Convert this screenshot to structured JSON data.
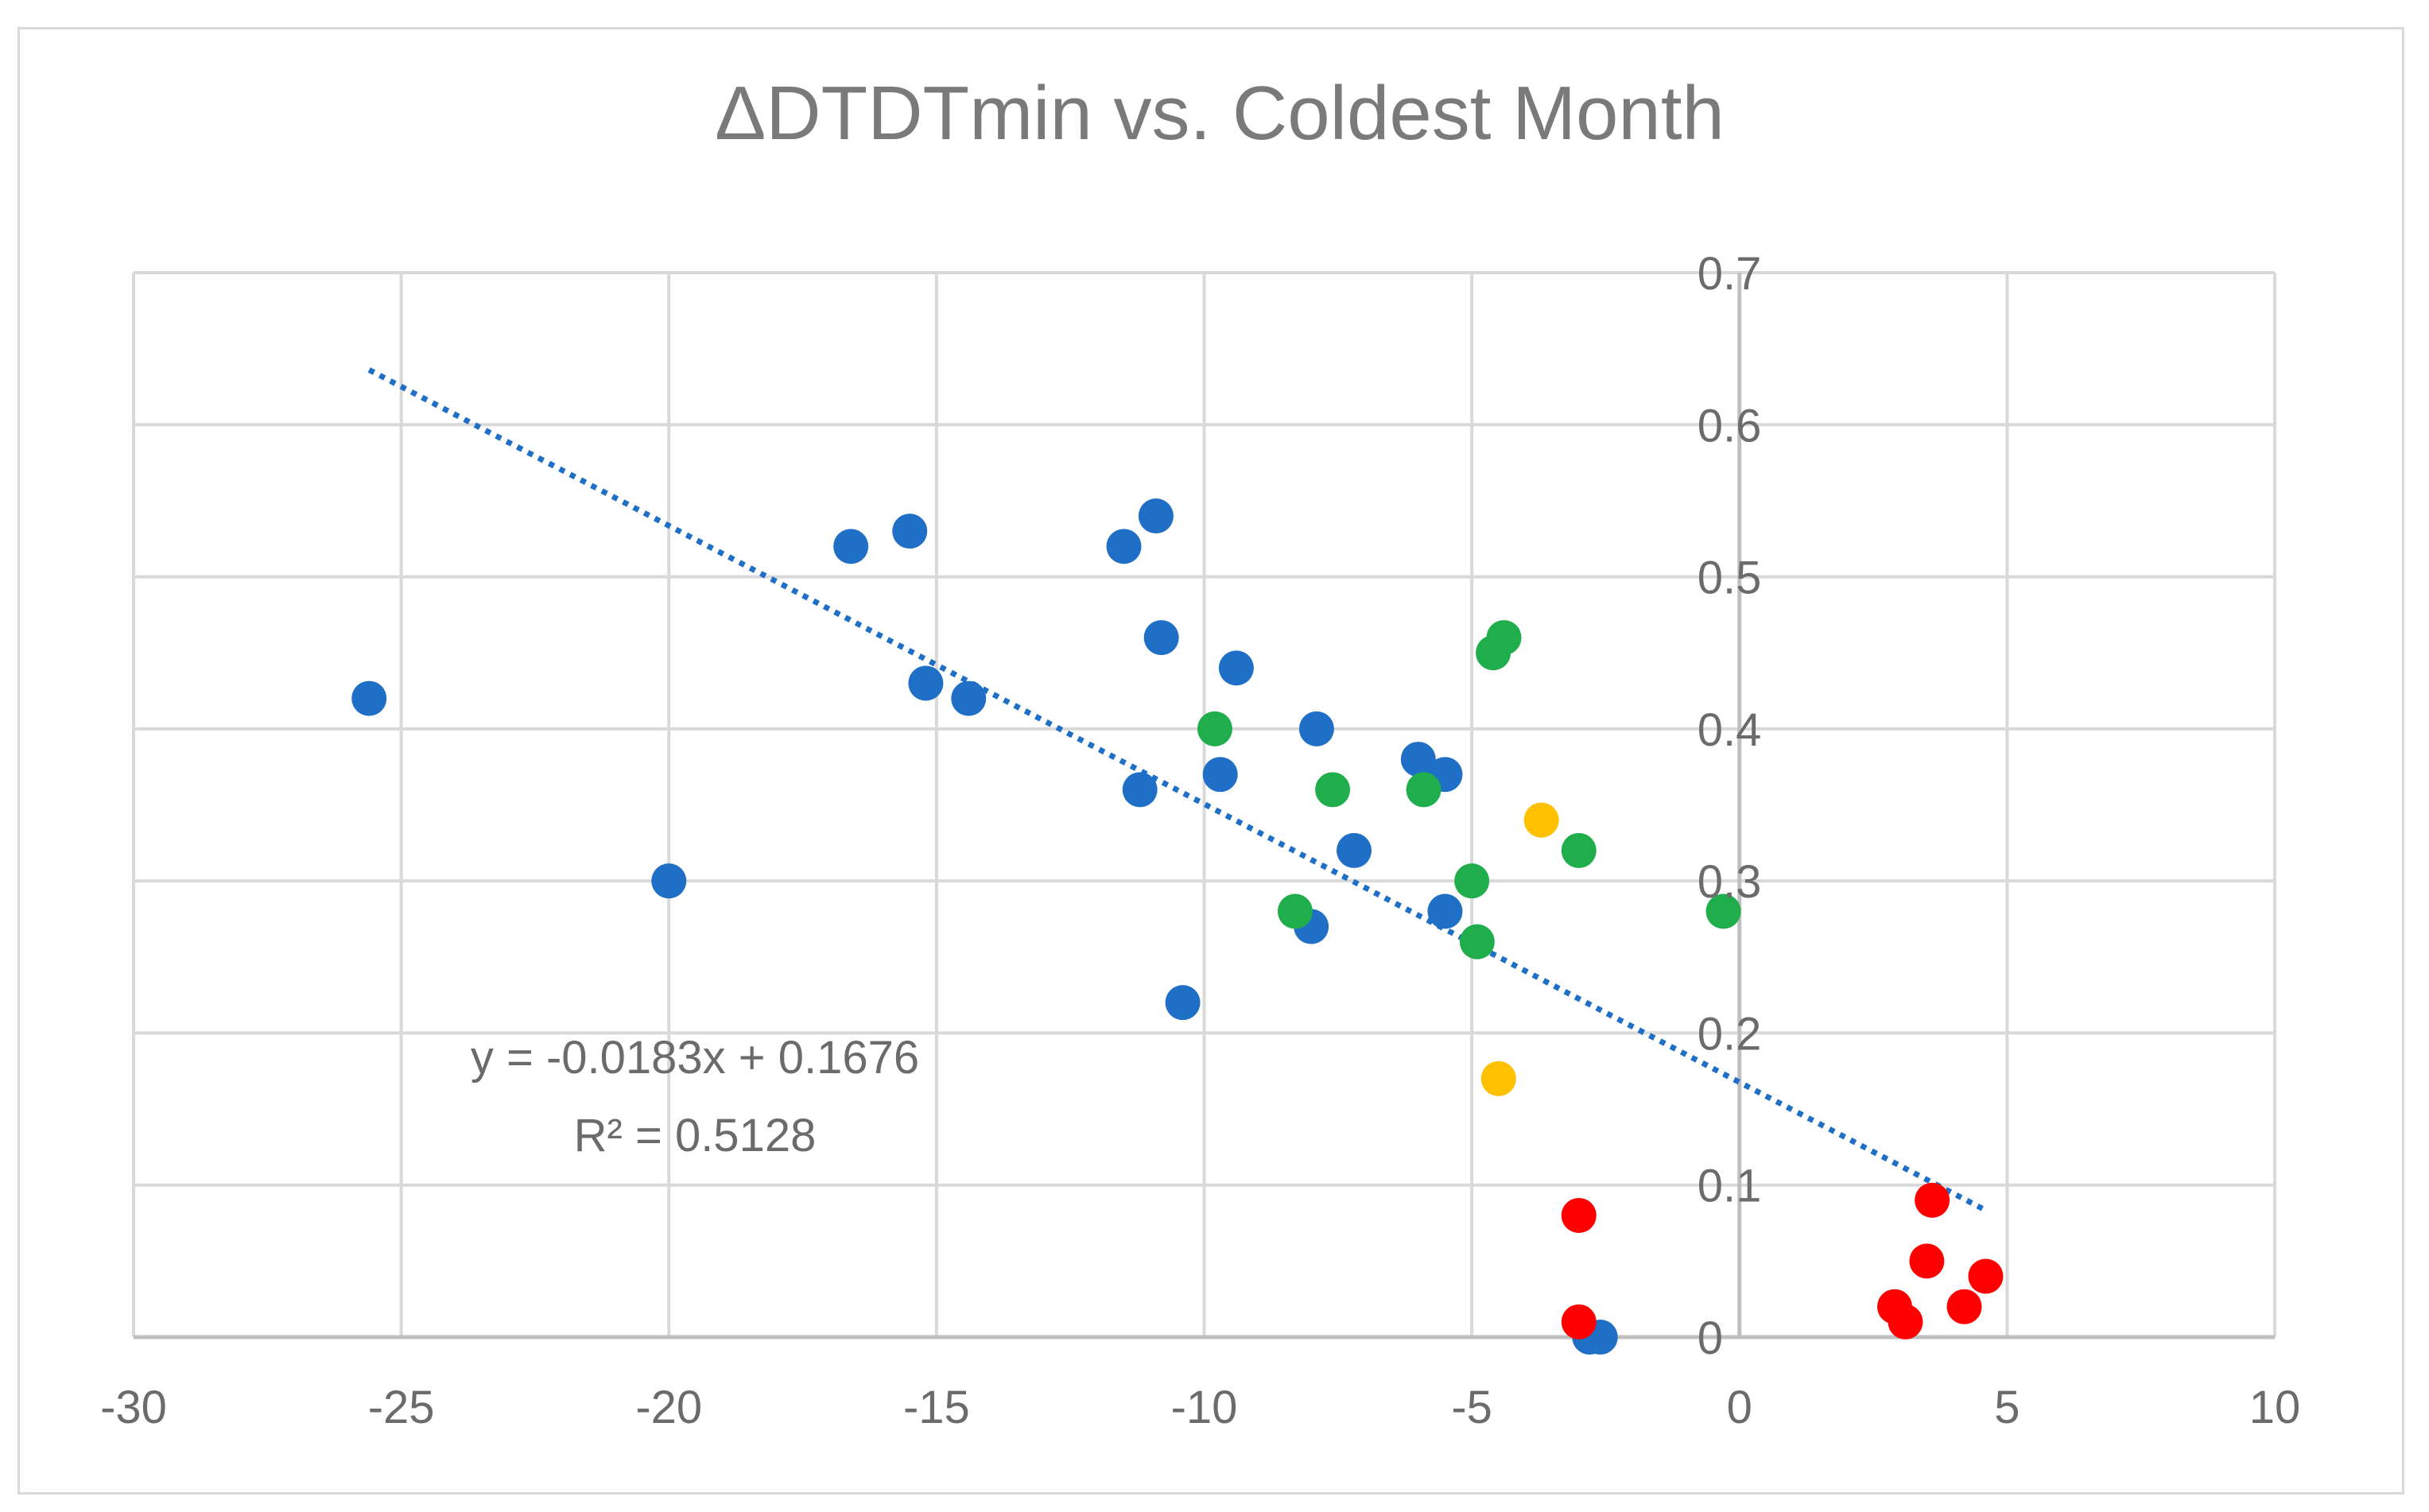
{
  "chart_data": {
    "type": "scatter",
    "title": "ΔDTDTmin vs. Coldest Month",
    "xlabel": "",
    "ylabel": "",
    "xlim": [
      -30,
      10
    ],
    "ylim": [
      0,
      0.7
    ],
    "x_ticks": [
      -30,
      -25,
      -20,
      -15,
      -10,
      -5,
      0,
      5,
      10
    ],
    "y_ticks": [
      0,
      0.1,
      0.2,
      0.3,
      0.4,
      0.5,
      0.6,
      0.7
    ],
    "x_tick_labels": [
      "-30",
      "-25",
      "-20",
      "-15",
      "-10",
      "-5",
      "0",
      "5",
      "10"
    ],
    "y_tick_labels": [
      "0",
      "0.1",
      "0.2",
      "0.3",
      "0.4",
      "0.5",
      "0.6",
      "0.7"
    ],
    "grid": true,
    "legend": "none",
    "series": [
      {
        "name": "blue",
        "color": "#1f6fc6",
        "points": [
          [
            -25.6,
            0.42
          ],
          [
            -20.0,
            0.3
          ],
          [
            -16.6,
            0.52
          ],
          [
            -15.5,
            0.53
          ],
          [
            -15.2,
            0.43
          ],
          [
            -14.4,
            0.42
          ],
          [
            -11.5,
            0.52
          ],
          [
            -10.9,
            0.54
          ],
          [
            -10.8,
            0.46
          ],
          [
            -11.2,
            0.36
          ],
          [
            -10.4,
            0.22
          ],
          [
            -9.7,
            0.37
          ],
          [
            -9.4,
            0.44
          ],
          [
            -7.9,
            0.4
          ],
          [
            -7.2,
            0.32
          ],
          [
            -8.0,
            0.27
          ],
          [
            -6.0,
            0.38
          ],
          [
            -5.5,
            0.37
          ],
          [
            -5.5,
            0.28
          ],
          [
            -2.6,
            0.0
          ],
          [
            -2.8,
            0.0
          ]
        ]
      },
      {
        "name": "green",
        "color": "#1fae4b",
        "points": [
          [
            -9.8,
            0.4
          ],
          [
            -7.6,
            0.36
          ],
          [
            -5.9,
            0.36
          ],
          [
            -8.3,
            0.28
          ],
          [
            -5.0,
            0.3
          ],
          [
            -4.9,
            0.26
          ],
          [
            -4.6,
            0.45
          ],
          [
            -4.4,
            0.46
          ],
          [
            -3.0,
            0.32
          ],
          [
            -0.3,
            0.28
          ]
        ]
      },
      {
        "name": "yellow",
        "color": "#ffc000",
        "points": [
          [
            -3.7,
            0.34
          ],
          [
            -4.5,
            0.17
          ]
        ]
      },
      {
        "name": "red",
        "color": "#ff0000",
        "points": [
          [
            -3.0,
            0.08
          ],
          [
            -3.0,
            0.01
          ],
          [
            3.6,
            0.09
          ],
          [
            3.5,
            0.05
          ],
          [
            4.6,
            0.04
          ],
          [
            2.9,
            0.02
          ],
          [
            4.2,
            0.02
          ],
          [
            3.1,
            0.01
          ]
        ]
      }
    ],
    "trendline": {
      "type": "linear",
      "slope": -0.0183,
      "intercept": 0.1676,
      "x_range": [
        -25.6,
        4.6
      ],
      "color": "#1f6fc6",
      "style": "dotted",
      "equation": "y = -0.0183x + 0.1676",
      "r_squared": "R² = 0.5128"
    },
    "colors": {
      "grid": "#d9d9d9",
      "y_axis_line": "#bfbfbf",
      "text": "#6b6b6b",
      "title": "#7a7a7a"
    }
  }
}
